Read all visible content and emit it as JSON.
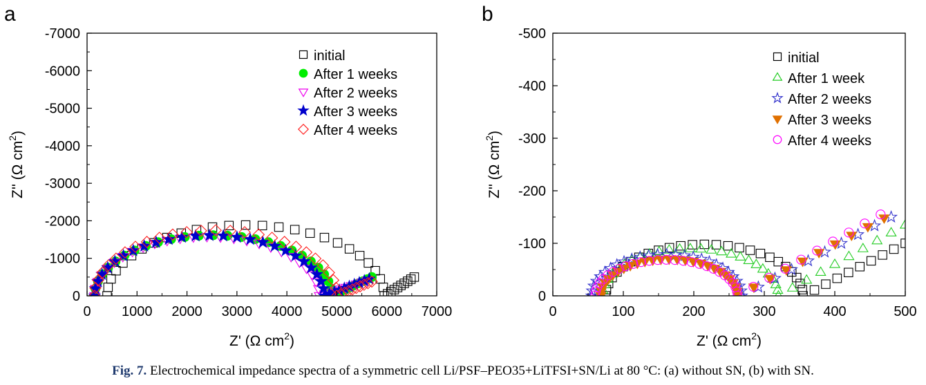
{
  "caption": {
    "label": "Fig. 7.",
    "text": "Electrochemical impedance spectra of a symmetric cell Li/PSF–PEO35+LiTFSI+SN/Li at 80 °C: (a) without SN, (b) with SN."
  },
  "chart_data": [
    {
      "panel_label": "a",
      "type": "scatter",
      "xlabel_main": "Z' (Ω cm",
      "xlabel_sup": "2",
      "xlabel_tail": ")",
      "ylabel_main": "Z'' (Ω cm",
      "ylabel_sup": "2",
      "ylabel_tail": ")",
      "xlim": [
        0,
        7000
      ],
      "ylim": [
        0,
        -7000
      ],
      "xticks": [
        0,
        1000,
        2000,
        3000,
        4000,
        5000,
        6000,
        7000
      ],
      "yticks": [
        0,
        -1000,
        -2000,
        -3000,
        -4000,
        -5000,
        -6000,
        -7000
      ],
      "xtick_labels": [
        "0",
        "1000",
        "2000",
        "3000",
        "4000",
        "5000",
        "6000",
        "7000"
      ],
      "ytick_labels": [
        "0",
        "-1000",
        "-2000",
        "-3000",
        "-4000",
        "-5000",
        "-6000",
        "-7000"
      ],
      "legend_position": "top-right",
      "series": [
        {
          "name": "initial",
          "marker": "square-open",
          "color": "#000000",
          "arc": {
            "r0": 400,
            "r1": 5950,
            "scale": 0.68
          },
          "tail": {
            "x1": 6550,
            "y1": -500
          }
        },
        {
          "name": "After 1 weeks",
          "marker": "circle-filled",
          "color": "#00ee00",
          "arc": {
            "r0": 150,
            "r1": 4900,
            "scale": 0.68
          },
          "tail": {
            "x1": 5700,
            "y1": -500
          }
        },
        {
          "name": "After 2 weeks",
          "marker": "triangle-down-open",
          "color": "#ee00ee",
          "arc": {
            "r0": 150,
            "r1": 4650,
            "scale": 0.7
          },
          "tail": {
            "x1": 5600,
            "y1": -400
          }
        },
        {
          "name": "After 3 weeks",
          "marker": "star-filled",
          "color": "#0000cc",
          "arc": {
            "r0": 150,
            "r1": 4750,
            "scale": 0.7
          },
          "tail": {
            "x1": 5650,
            "y1": -450
          }
        },
        {
          "name": "After 4 weeks",
          "marker": "diamond-open",
          "color": "#ff2020",
          "arc": {
            "r0": 150,
            "r1": 5000,
            "scale": 0.72
          },
          "tail": {
            "x1": 5700,
            "y1": -380
          }
        }
      ]
    },
    {
      "panel_label": "b",
      "type": "scatter",
      "xlabel_main": "Z' (Ω cm",
      "xlabel_sup": "2",
      "xlabel_tail": ")",
      "ylabel_main": "Z'' (Ω cm",
      "ylabel_sup": "2",
      "ylabel_tail": ")",
      "xlim": [
        0,
        500
      ],
      "ylim": [
        0,
        -500
      ],
      "xticks": [
        0,
        100,
        200,
        300,
        400,
        500
      ],
      "yticks": [
        0,
        -100,
        -200,
        -300,
        -400,
        -500
      ],
      "xtick_labels": [
        "0",
        "100",
        "200",
        "300",
        "400",
        "500"
      ],
      "ytick_labels": [
        "0",
        "-100",
        "-200",
        "-300",
        "-400",
        "-500"
      ],
      "legend_position": "top-right",
      "series": [
        {
          "name": "initial",
          "marker": "square-open",
          "color": "#000000",
          "arc": {
            "r0": 75,
            "r1": 355,
            "scale": 0.7
          },
          "tail": {
            "x1": 500,
            "y1": -100
          }
        },
        {
          "name": "After 1 week",
          "marker": "triangle-up-open",
          "color": "#22cc22",
          "arc": {
            "r0": 70,
            "r1": 320,
            "scale": 0.72
          },
          "tail": {
            "x1": 500,
            "y1": -135
          }
        },
        {
          "name": "After 2 weeks",
          "marker": "star-open",
          "color": "#3333cc",
          "arc": {
            "r0": 55,
            "r1": 268,
            "scale": 0.74
          },
          "tail": {
            "x1": 480,
            "y1": -150
          }
        },
        {
          "name": "After 3 weeks",
          "marker": "triangle-down-filled",
          "color": "#e07000",
          "arc": {
            "r0": 68,
            "r1": 262,
            "scale": 0.72
          },
          "tail": {
            "x1": 470,
            "y1": -148
          }
        },
        {
          "name": "After 4 weeks",
          "marker": "circle-open",
          "color": "#ff00ff",
          "arc": {
            "r0": 60,
            "r1": 262,
            "scale": 0.68
          },
          "tail": {
            "x1": 465,
            "y1": -155
          }
        }
      ]
    }
  ]
}
